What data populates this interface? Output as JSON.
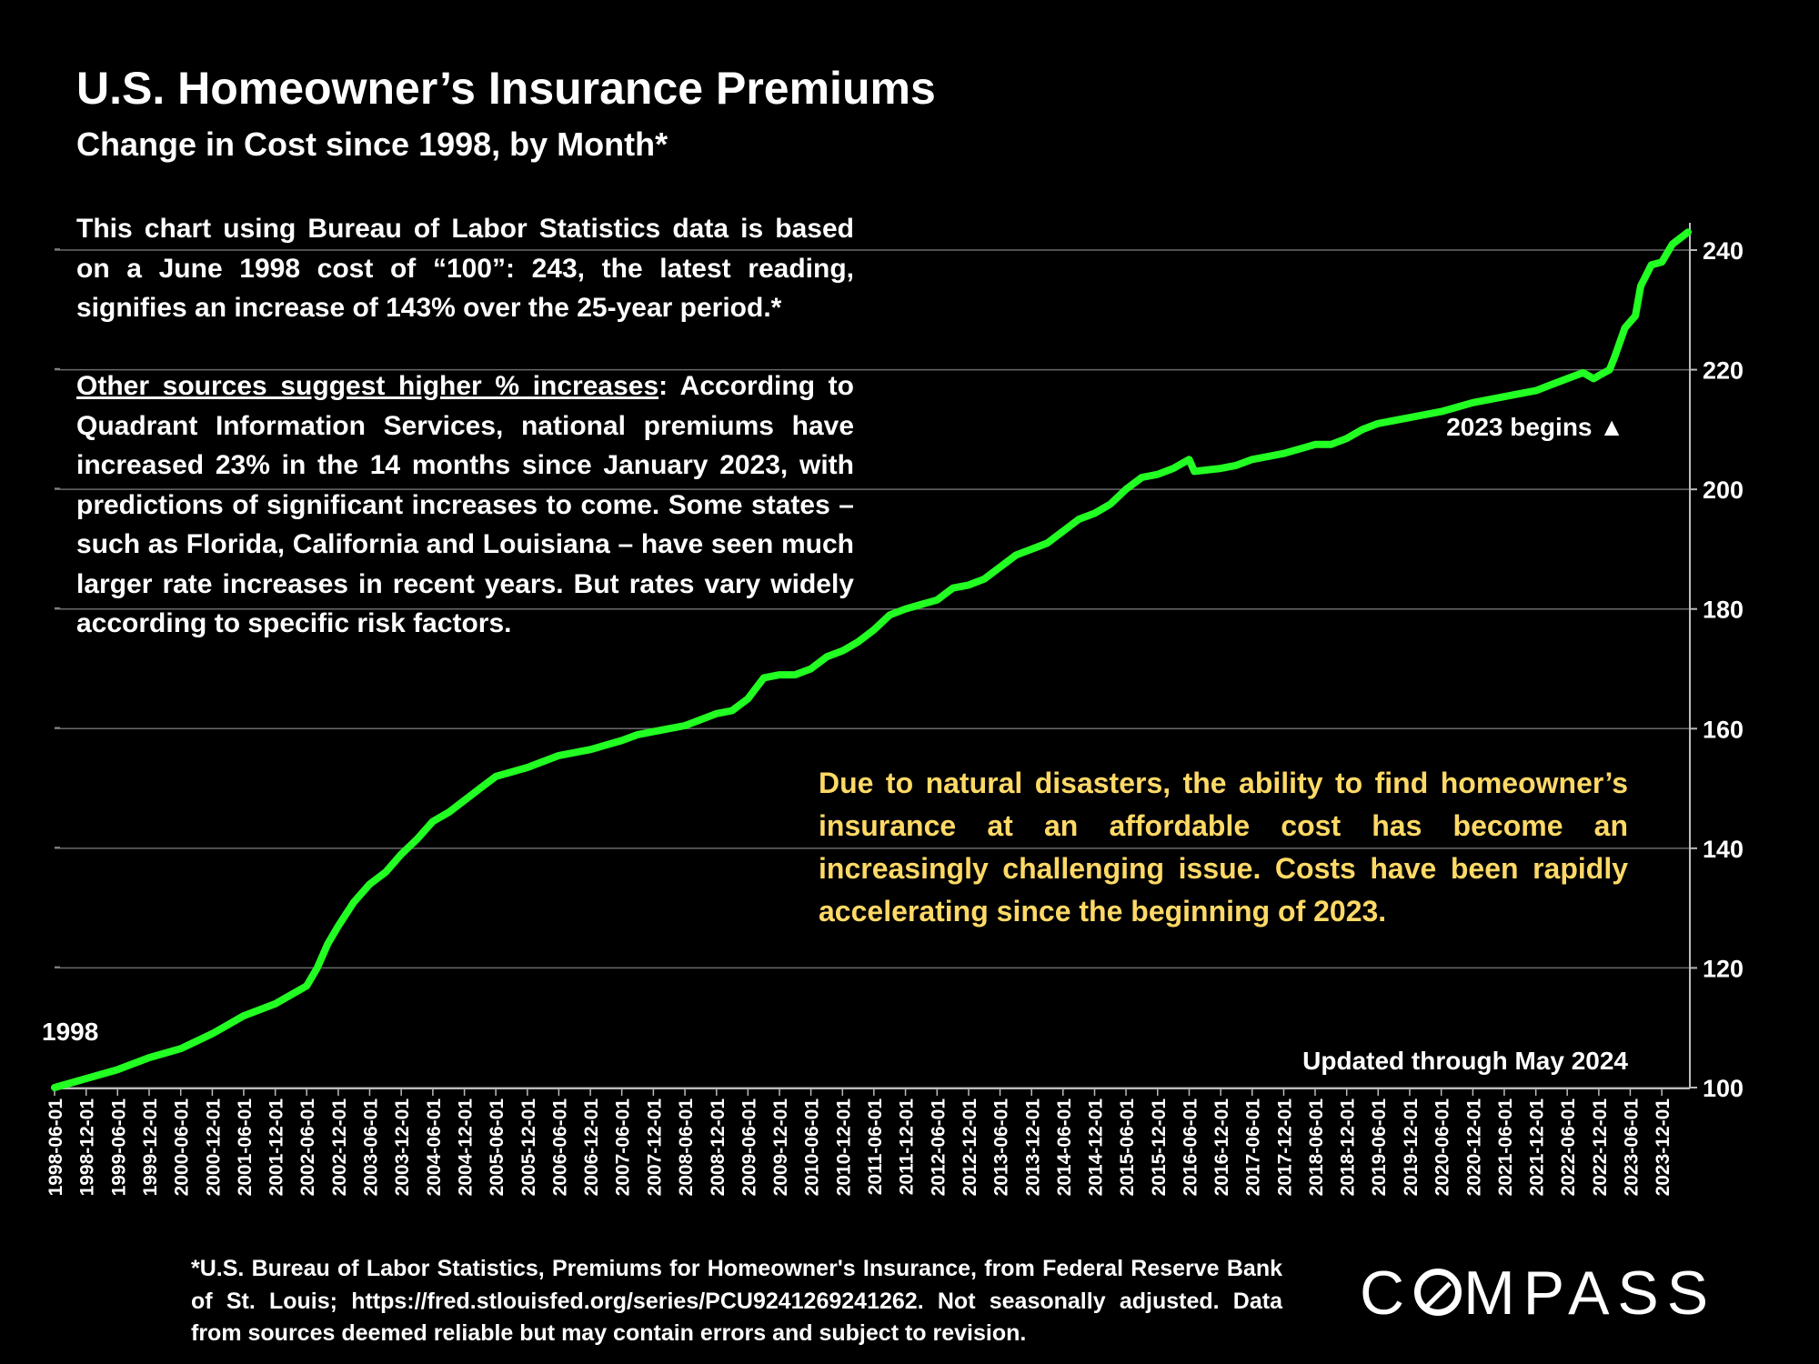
{
  "title": "U.S. Homeowner’s Insurance Premiums",
  "subtitle": "Change in Cost since 1998, by Month*",
  "note1": "This chart using Bureau of Labor Statistics data is based on a June 1998 cost of “100”:  243, the latest reading, signifies an increase of 143% over the 25-year period.*",
  "note2_underlined": "Other sources suggest higher % increases",
  "note2_rest": ":  According to Quadrant Information Services, national premiums have increased 23% in the 14 months since January 2023, with predictions of significant increases to come. Some states – such as Florida, California and Louisiana – have seen much larger rate increases in recent years. But rates vary widely according to specific risk factors.",
  "callout": "Due to natural disasters, the ability to find homeowner’s insurance at an affordable cost has become an increasingly challenging issue. Costs have been rapidly accelerating since the beginning of 2023.",
  "footnote": "*U.S. Bureau of Labor Statistics, Premiums for Homeowner's Insurance, from Federal Reserve Bank of St. Louis; https://fred.stlouisfed.org/series/PCU9241269241262. Not seasonally adjusted. Data from sources deemed reliable but may contain errors and subject to revision.",
  "logo": "COMPASS",
  "colors": {
    "line": "#22FF22",
    "callout": "#FFD966",
    "grid": "#6a6a6a",
    "background": "#000000"
  },
  "chart_data": {
    "type": "line",
    "title": "U.S. Homeowner’s Insurance Premiums",
    "subtitle": "Change in Cost since 1998, by Month*",
    "ylim": [
      100,
      245
    ],
    "yticks": [
      100,
      120,
      140,
      160,
      180,
      200,
      220,
      240
    ],
    "y_axis_side": "right",
    "grid": "horizontal",
    "x_tick_labels": [
      "1998-06-01",
      "1998-12-01",
      "1999-06-01",
      "1999-12-01",
      "2000-06-01",
      "2000-12-01",
      "2001-06-01",
      "2001-12-01",
      "2002-06-01",
      "2002-12-01",
      "2003-06-01",
      "2003-12-01",
      "2004-06-01",
      "2004-12-01",
      "2005-06-01",
      "2005-12-01",
      "2006-06-01",
      "2006-12-01",
      "2007-06-01",
      "2007-12-01",
      "2008-06-01",
      "2008-12-01",
      "2009-06-01",
      "2009-12-01",
      "2010-06-01",
      "2010-12-01",
      "2011-06-01",
      "2011-12-01",
      "2012-06-01",
      "2012-12-01",
      "2013-06-01",
      "2013-12-01",
      "2014-06-01",
      "2014-12-01",
      "2015-06-01",
      "2015-12-01",
      "2016-06-01",
      "2016-12-01",
      "2017-06-01",
      "2017-12-01",
      "2018-06-01",
      "2018-12-01",
      "2019-06-01",
      "2019-12-01",
      "2020-06-01",
      "2020-12-01",
      "2021-06-01",
      "2021-12-01",
      "2022-06-01",
      "2022-12-01",
      "2023-06-01",
      "2023-12-01"
    ],
    "series": [
      {
        "points": [
          [
            "1998-06-01",
            100
          ],
          [
            "1998-12-01",
            101.5
          ],
          [
            "1999-06-01",
            103
          ],
          [
            "1999-12-01",
            105
          ],
          [
            "2000-06-01",
            106.5
          ],
          [
            "2000-12-01",
            109
          ],
          [
            "2001-06-01",
            112
          ],
          [
            "2001-12-01",
            114
          ],
          [
            "2002-06-01",
            117
          ],
          [
            "2002-08-01",
            120
          ],
          [
            "2002-10-01",
            124
          ],
          [
            "2002-12-01",
            127
          ],
          [
            "2003-03-01",
            131
          ],
          [
            "2003-06-01",
            134
          ],
          [
            "2003-09-01",
            136
          ],
          [
            "2003-12-01",
            139
          ],
          [
            "2004-03-01",
            141.5
          ],
          [
            "2004-06-01",
            144.5
          ],
          [
            "2004-09-01",
            146
          ],
          [
            "2004-12-01",
            148
          ],
          [
            "2005-03-01",
            150
          ],
          [
            "2005-06-01",
            152
          ],
          [
            "2005-12-01",
            153.5
          ],
          [
            "2006-06-01",
            155.5
          ],
          [
            "2006-12-01",
            156.5
          ],
          [
            "2007-06-01",
            158
          ],
          [
            "2007-09-01",
            159
          ],
          [
            "2007-12-01",
            159.5
          ],
          [
            "2008-06-01",
            160.5
          ],
          [
            "2008-09-01",
            161.5
          ],
          [
            "2008-12-01",
            162.5
          ],
          [
            "2009-03-01",
            163
          ],
          [
            "2009-06-01",
            165
          ],
          [
            "2009-09-01",
            168.5
          ],
          [
            "2009-12-01",
            169
          ],
          [
            "2010-03-01",
            169
          ],
          [
            "2010-06-01",
            170
          ],
          [
            "2010-09-01",
            172
          ],
          [
            "2010-12-01",
            173
          ],
          [
            "2011-03-01",
            174.5
          ],
          [
            "2011-06-01",
            176.5
          ],
          [
            "2011-09-01",
            179
          ],
          [
            "2011-12-01",
            180
          ],
          [
            "2012-06-01",
            181.5
          ],
          [
            "2012-09-01",
            183.5
          ],
          [
            "2012-12-01",
            184
          ],
          [
            "2013-03-01",
            185
          ],
          [
            "2013-06-01",
            187
          ],
          [
            "2013-09-01",
            189
          ],
          [
            "2013-12-01",
            190
          ],
          [
            "2014-03-01",
            191
          ],
          [
            "2014-06-01",
            193
          ],
          [
            "2014-09-01",
            195
          ],
          [
            "2014-12-01",
            196
          ],
          [
            "2015-03-01",
            197.5
          ],
          [
            "2015-06-01",
            200
          ],
          [
            "2015-09-01",
            202
          ],
          [
            "2015-12-01",
            202.5
          ],
          [
            "2016-03-01",
            203.5
          ],
          [
            "2016-06-01",
            205
          ],
          [
            "2016-07-01",
            203
          ],
          [
            "2016-12-01",
            203.5
          ],
          [
            "2017-03-01",
            204
          ],
          [
            "2017-06-01",
            205
          ],
          [
            "2017-12-01",
            206
          ],
          [
            "2018-06-01",
            207.5
          ],
          [
            "2018-09-01",
            207.5
          ],
          [
            "2018-12-01",
            208.5
          ],
          [
            "2019-03-01",
            210
          ],
          [
            "2019-06-01",
            211
          ],
          [
            "2019-12-01",
            212
          ],
          [
            "2020-06-01",
            213
          ],
          [
            "2020-12-01",
            214.5
          ],
          [
            "2021-06-01",
            215.5
          ],
          [
            "2021-12-01",
            216.5
          ],
          [
            "2022-03-01",
            217.5
          ],
          [
            "2022-06-01",
            218.5
          ],
          [
            "2022-09-01",
            219.5
          ],
          [
            "2022-11-01",
            218.5
          ],
          [
            "2022-12-01",
            219
          ],
          [
            "2023-02-01",
            220
          ],
          [
            "2023-03-01",
            222
          ],
          [
            "2023-05-01",
            227
          ],
          [
            "2023-07-01",
            229
          ],
          [
            "2023-08-01",
            234
          ],
          [
            "2023-10-01",
            237.5
          ],
          [
            "2023-12-01",
            238
          ],
          [
            "2024-02-01",
            241
          ],
          [
            "2024-05-01",
            243
          ]
        ]
      }
    ],
    "annotations": {
      "start_label": "1998",
      "marker_label": "2023 begins ▲",
      "updated_label": "Updated through May 2024"
    }
  }
}
